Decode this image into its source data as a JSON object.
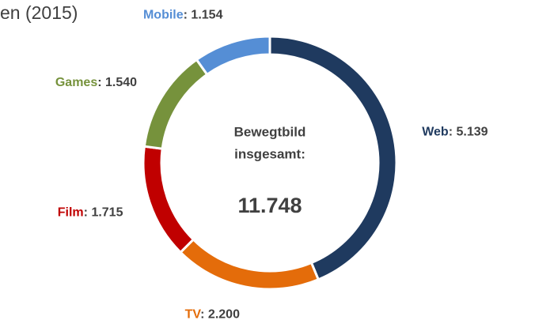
{
  "chart_data": {
    "type": "donut",
    "title": "en (2015)",
    "center_text": [
      "Bewegtbild",
      "insgesamt:"
    ],
    "center_value": "11.748",
    "categories": [
      "Web",
      "TV",
      "Film",
      "Games",
      "Mobile"
    ],
    "values": [
      5139,
      2200,
      1715,
      1540,
      1154
    ],
    "value_labels": [
      "5.139",
      "2.200",
      "1.715",
      "1.540",
      "1.154"
    ],
    "separator": ": ",
    "colors": [
      "#1f3a5f",
      "#e46c0a",
      "#c00000",
      "#76923c",
      "#558ed5"
    ]
  }
}
